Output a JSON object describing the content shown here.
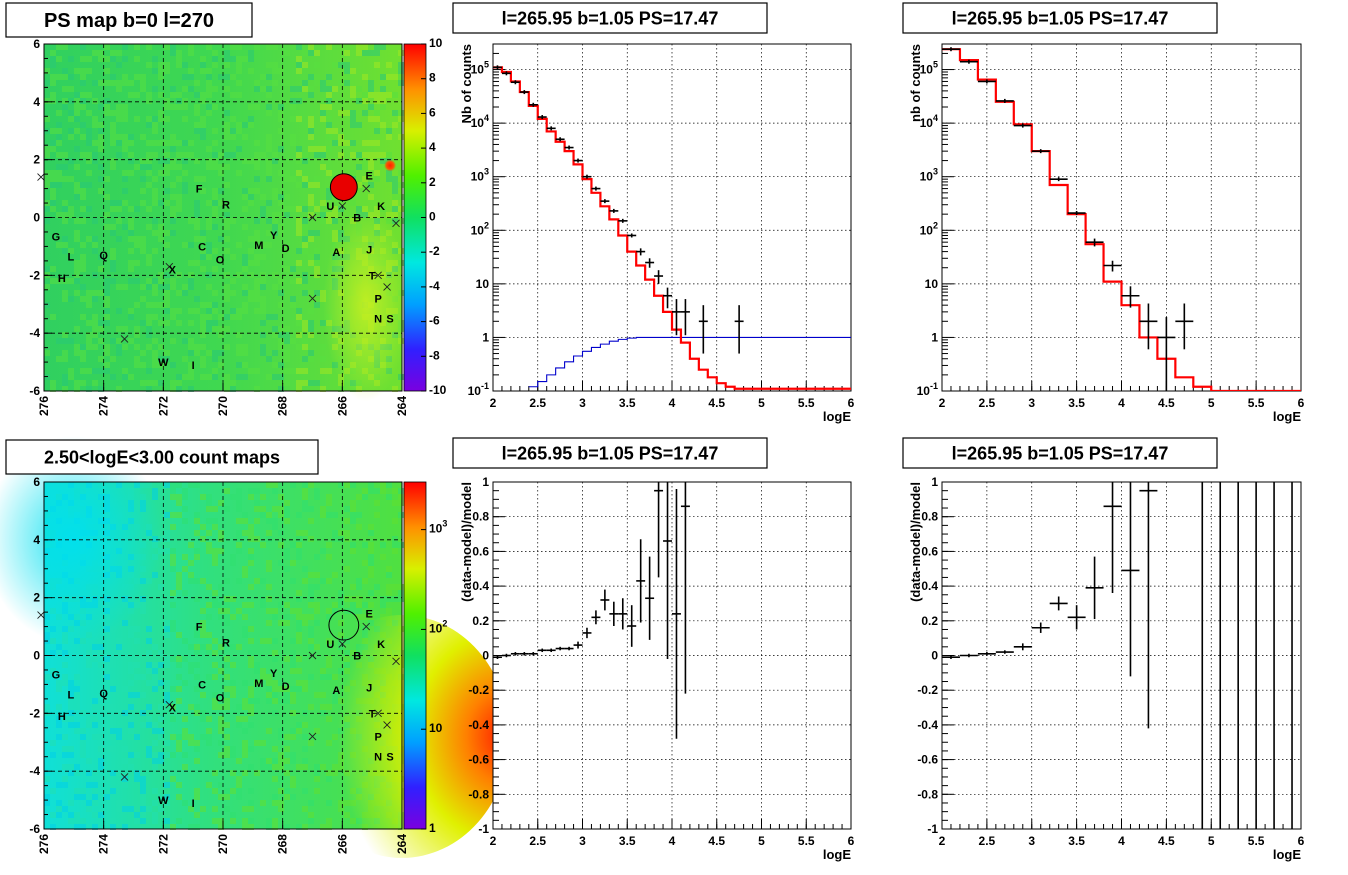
{
  "chart_data": [
    {
      "type": "heatmap",
      "title": "PS map b=0 l=270",
      "xlabel": "",
      "ylabel": "",
      "x_ticks": [
        "276",
        "274",
        "272",
        "270",
        "268",
        "266",
        "264"
      ],
      "y_ticks": [
        "6",
        "4",
        "2",
        "0",
        "-2",
        "-4",
        "-6"
      ],
      "xlim": [
        276,
        264
      ],
      "ylim": [
        -6,
        6
      ],
      "colorbar": {
        "scale": "linear",
        "range": [
          -10,
          10
        ],
        "ticks": [
          "10",
          "8",
          "6",
          "4",
          "2",
          "0",
          "-2",
          "-4",
          "-6",
          "-8",
          "-10"
        ]
      },
      "markers": [
        {
          "l": 265.95,
          "b": 1.05,
          "shape": "circle",
          "radius": 0.45,
          "filled": true
        },
        {
          "l": 264.4,
          "b": 1.8,
          "shape": "spot"
        }
      ],
      "crosses": [
        {
          "l": 276.1,
          "b": 1.4
        },
        {
          "l": 265.2,
          "b": 1.0
        },
        {
          "l": 264.2,
          "b": -0.2
        },
        {
          "l": 267,
          "b": 0.0
        },
        {
          "l": 266,
          "b": 0.4
        },
        {
          "l": 271.8,
          "b": -1.7
        },
        {
          "l": 264.8,
          "b": -2.0
        },
        {
          "l": 267,
          "b": -2.8
        },
        {
          "l": 264.5,
          "b": -2.4
        },
        {
          "l": 273.3,
          "b": -4.2
        }
      ],
      "labels": [
        {
          "text": "F",
          "l": 270.8,
          "b": 1.0
        },
        {
          "text": "R",
          "l": 269.9,
          "b": 0.45
        },
        {
          "text": "E",
          "l": 265.1,
          "b": 1.45
        },
        {
          "text": "K",
          "l": 264.7,
          "b": 0.4
        },
        {
          "text": "U",
          "l": 266.4,
          "b": 0.4
        },
        {
          "text": "B",
          "l": 265.5,
          "b": 0.0
        },
        {
          "text": "G",
          "l": 275.6,
          "b": -0.65
        },
        {
          "text": "L",
          "l": 275.1,
          "b": -1.35
        },
        {
          "text": "Q",
          "l": 274.0,
          "b": -1.3
        },
        {
          "text": "C",
          "l": 270.7,
          "b": -1.0
        },
        {
          "text": "O",
          "l": 270.1,
          "b": -1.45
        },
        {
          "text": "M",
          "l": 268.8,
          "b": -0.95
        },
        {
          "text": "Y",
          "l": 268.3,
          "b": -0.6
        },
        {
          "text": "D",
          "l": 267.9,
          "b": -1.05
        },
        {
          "text": "A",
          "l": 266.2,
          "b": -1.2
        },
        {
          "text": "J",
          "l": 265.1,
          "b": -1.1
        },
        {
          "text": "H",
          "l": 275.4,
          "b": -2.1
        },
        {
          "text": "X",
          "l": 271.7,
          "b": -1.8
        },
        {
          "text": "T",
          "l": 265.0,
          "b": -2.0
        },
        {
          "text": "P",
          "l": 264.8,
          "b": -2.8
        },
        {
          "text": "N",
          "l": 264.8,
          "b": -3.5
        },
        {
          "text": "S",
          "l": 264.4,
          "b": -3.5
        },
        {
          "text": "W",
          "l": 272.0,
          "b": -5.0
        },
        {
          "text": "I",
          "l": 271.0,
          "b": -5.1
        }
      ]
    },
    {
      "type": "line",
      "title": "l=265.95 b=1.05 PS=17.47",
      "xlabel": "logE",
      "ylabel": "Nb of counts",
      "yscale": "log",
      "xlim": [
        2,
        6
      ],
      "ylim": [
        0.1,
        300000
      ],
      "x_ticks": [
        "2",
        "2.5",
        "3",
        "3.5",
        "4",
        "4.5",
        "5",
        "5.5",
        "6"
      ],
      "y_ticks": [
        "10^-1",
        "1",
        "10",
        "10^2",
        "10^3",
        "10^4",
        "10^5"
      ],
      "grid": true,
      "data": {
        "x": [
          2.05,
          2.15,
          2.25,
          2.35,
          2.45,
          2.55,
          2.65,
          2.75,
          2.85,
          2.95,
          3.05,
          3.15,
          3.25,
          3.35,
          3.45,
          3.55,
          3.65,
          3.75,
          3.85,
          3.95,
          4.05,
          4.15,
          4.35,
          4.75
        ],
        "y": [
          110000,
          85000,
          58000,
          38000,
          22000,
          13000,
          8000,
          5000,
          3500,
          2000,
          1000,
          600,
          350,
          230,
          150,
          80,
          40,
          25,
          14,
          6,
          3,
          3,
          2,
          2
        ],
        "yerr_lo": [
          0,
          0,
          0,
          0,
          0,
          0,
          0,
          0,
          0,
          0,
          0,
          0,
          0,
          0,
          0,
          0,
          6,
          5,
          4,
          2.5,
          1.9,
          1.9,
          1.5,
          1.5
        ],
        "yerr_hi": [
          0,
          0,
          0,
          0,
          0,
          0,
          0,
          0,
          0,
          0,
          0,
          0,
          0,
          0,
          0,
          0,
          6,
          5,
          4,
          2.5,
          2.2,
          2.2,
          2.0,
          2.0
        ],
        "xerr": 0.05
      },
      "model": {
        "edges": [
          2.0,
          2.1,
          2.2,
          2.3,
          2.4,
          2.5,
          2.6,
          2.7,
          2.8,
          2.9,
          3.0,
          3.1,
          3.2,
          3.3,
          3.4,
          3.5,
          3.6,
          3.7,
          3.8,
          3.9,
          4.0,
          4.1,
          4.2,
          4.3,
          4.4,
          4.5,
          4.6,
          4.7,
          4.8,
          6.0
        ],
        "values": [
          110000,
          90000,
          60000,
          38000,
          21000,
          12000,
          7000,
          4500,
          3000,
          1700,
          900,
          500,
          280,
          160,
          80,
          40,
          22,
          12,
          6,
          3,
          1.4,
          0.8,
          0.4,
          0.25,
          0.18,
          0.14,
          0.12,
          0.11,
          0.11
        ],
        "color": "#ff0000"
      },
      "background": {
        "edges": [
          2.4,
          2.5,
          2.6,
          2.7,
          2.8,
          2.9,
          3.0,
          3.1,
          3.2,
          3.3,
          3.4,
          3.5,
          3.6,
          6.0
        ],
        "values": [
          0.12,
          0.15,
          0.2,
          0.27,
          0.35,
          0.45,
          0.55,
          0.65,
          0.75,
          0.85,
          0.92,
          0.97,
          1.0
        ],
        "color": "#0000cc"
      }
    },
    {
      "type": "line",
      "title": "l=265.95 b=1.05 PS=17.47",
      "xlabel": "logE",
      "ylabel": "nb of counts",
      "yscale": "log",
      "xlim": [
        2,
        6
      ],
      "ylim": [
        0.1,
        300000
      ],
      "x_ticks": [
        "2",
        "2.5",
        "3",
        "3.5",
        "4",
        "4.5",
        "5",
        "5.5",
        "6"
      ],
      "y_ticks": [
        "10^-1",
        "1",
        "10",
        "10^2",
        "10^3",
        "10^4",
        "10^5"
      ],
      "grid": true,
      "data": {
        "x": [
          2.1,
          2.3,
          2.5,
          2.7,
          2.9,
          3.1,
          3.3,
          3.5,
          3.7,
          3.9,
          4.1,
          4.3,
          4.5,
          4.7
        ],
        "y": [
          240000,
          140000,
          60000,
          26000,
          9000,
          3000,
          900,
          210,
          60,
          22,
          6,
          2,
          1,
          2
        ],
        "yerr_lo": [
          0,
          0,
          0,
          0,
          0,
          0,
          0,
          0,
          10,
          5,
          2.4,
          1.4,
          0.95,
          1.4
        ],
        "yerr_hi": [
          0,
          0,
          0,
          0,
          0,
          0,
          0,
          0,
          10,
          5,
          3,
          2.3,
          1.4,
          2.3
        ],
        "xerr": 0.1
      },
      "model": {
        "edges": [
          2.0,
          2.2,
          2.4,
          2.6,
          2.8,
          3.0,
          3.2,
          3.4,
          3.6,
          3.8,
          4.0,
          4.2,
          4.4,
          4.6,
          4.8,
          5.0,
          6.0
        ],
        "values": [
          240000,
          150000,
          65000,
          25000,
          9500,
          3000,
          700,
          200,
          55,
          11,
          4,
          1,
          0.4,
          0.18,
          0.12,
          0.1
        ],
        "color": "#ff0000"
      }
    },
    {
      "type": "heatmap",
      "title": "2.50<logE<3.00 count maps",
      "xlabel": "",
      "ylabel": "",
      "x_ticks": [
        "276",
        "274",
        "272",
        "270",
        "268",
        "266",
        "264"
      ],
      "y_ticks": [
        "6",
        "4",
        "2",
        "0",
        "-2",
        "-4",
        "-6"
      ],
      "xlim": [
        276,
        264
      ],
      "ylim": [
        -6,
        6
      ],
      "colorbar": {
        "scale": "log",
        "range": [
          1,
          3000
        ],
        "ticks": [
          "10^3",
          "10^2",
          "10",
          "1"
        ]
      },
      "markers": [
        {
          "l": 265.95,
          "b": 1.05,
          "shape": "circle",
          "radius": 0.5,
          "filled": false
        }
      ]
    },
    {
      "type": "scatter",
      "title": "l=265.95 b=1.05 PS=17.47",
      "xlabel": "logE",
      "ylabel": "(data-model)/model",
      "xlim": [
        2,
        6
      ],
      "ylim": [
        -1,
        1
      ],
      "x_ticks": [
        "2",
        "2.5",
        "3",
        "3.5",
        "4",
        "4.5",
        "5",
        "5.5",
        "6"
      ],
      "y_ticks": [
        "1",
        "0.8",
        "0.6",
        "0.4",
        "0.2",
        "0",
        "-0.2",
        "-0.4",
        "-0.6",
        "-0.8",
        "-1"
      ],
      "grid": true,
      "data": {
        "x": [
          2.05,
          2.15,
          2.25,
          2.35,
          2.45,
          2.55,
          2.65,
          2.75,
          2.85,
          2.95,
          3.05,
          3.15,
          3.25,
          3.35,
          3.45,
          3.55,
          3.65,
          3.75,
          3.85,
          3.95,
          4.05,
          4.15
        ],
        "y": [
          -0.01,
          0.0,
          0.01,
          0.01,
          0.01,
          0.03,
          0.03,
          0.04,
          0.04,
          0.06,
          0.13,
          0.22,
          0.32,
          0.24,
          0.24,
          0.17,
          0.43,
          0.33,
          0.95,
          0.66,
          0.24,
          0.86
        ],
        "yerr": [
          0.01,
          0.01,
          0.01,
          0.01,
          0.01,
          0.01,
          0.01,
          0.01,
          0.01,
          0.02,
          0.03,
          0.04,
          0.06,
          0.07,
          0.09,
          0.12,
          0.24,
          0.24,
          0.5,
          0.68,
          0.72,
          1.08
        ],
        "xerr": 0.05
      }
    },
    {
      "type": "scatter",
      "title": "l=265.95 b=1.05 PS=17.47",
      "xlabel": "logE",
      "ylabel": "(data-model)/model",
      "xlim": [
        2,
        6
      ],
      "ylim": [
        -1,
        1
      ],
      "x_ticks": [
        "2",
        "2.5",
        "3",
        "3.5",
        "4",
        "4.5",
        "5",
        "5.5",
        "6"
      ],
      "y_ticks": [
        "1",
        "0.8",
        "0.6",
        "0.4",
        "0.2",
        "0",
        "-0.2",
        "-0.4",
        "-0.6",
        "-0.8",
        "-1"
      ],
      "grid": true,
      "data": {
        "x": [
          2.1,
          2.3,
          2.5,
          2.7,
          2.9,
          3.1,
          3.3,
          3.5,
          3.7,
          3.9,
          4.1,
          4.3
        ],
        "y": [
          -0.01,
          0.0,
          0.01,
          0.02,
          0.05,
          0.16,
          0.3,
          0.22,
          0.39,
          0.86,
          0.49,
          0.95
        ],
        "yerr": [
          0.01,
          0.01,
          0.01,
          0.01,
          0.02,
          0.03,
          0.04,
          0.07,
          0.18,
          0.5,
          0.61,
          1.37
        ],
        "xerr": 0.1
      },
      "full_bars_x": [
        4.9,
        5.1,
        5.3,
        5.5,
        5.7,
        5.9
      ]
    }
  ]
}
